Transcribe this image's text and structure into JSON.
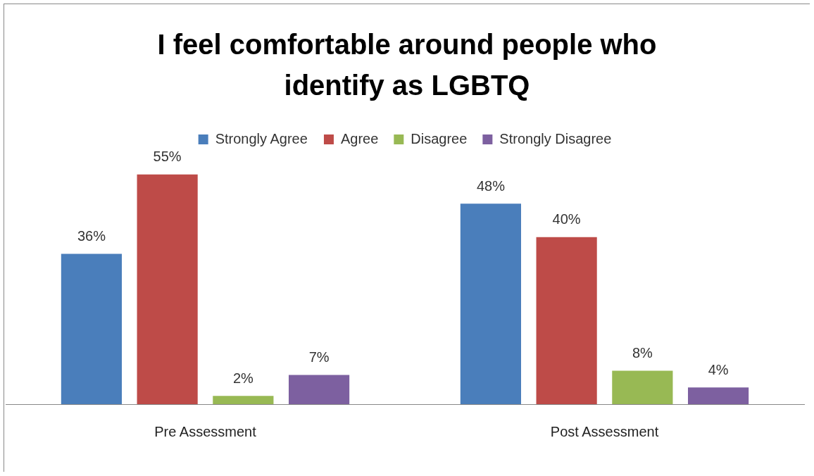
{
  "chart_data": {
    "type": "bar",
    "title": "I feel comfortable around people who identify as LGBTQ",
    "categories": [
      "Pre Assessment",
      "Post Assessment"
    ],
    "series": [
      {
        "name": "Strongly Agree",
        "color": "#4a7ebb",
        "values": [
          36,
          48
        ],
        "value_labels": [
          "36%",
          "48%"
        ]
      },
      {
        "name": "Agree",
        "color": "#be4b48",
        "values": [
          55,
          40
        ],
        "value_labels": [
          "55%",
          "40%"
        ]
      },
      {
        "name": "Disagree",
        "color": "#98b954",
        "values": [
          2,
          8
        ],
        "value_labels": [
          "2%",
          "8%"
        ]
      },
      {
        "name": "Strongly Disagree",
        "color": "#7d60a0",
        "values": [
          7,
          4
        ],
        "value_labels": [
          "7%",
          "4%"
        ]
      }
    ],
    "grid": false,
    "legend": "top",
    "tick_labels": "x"
  }
}
